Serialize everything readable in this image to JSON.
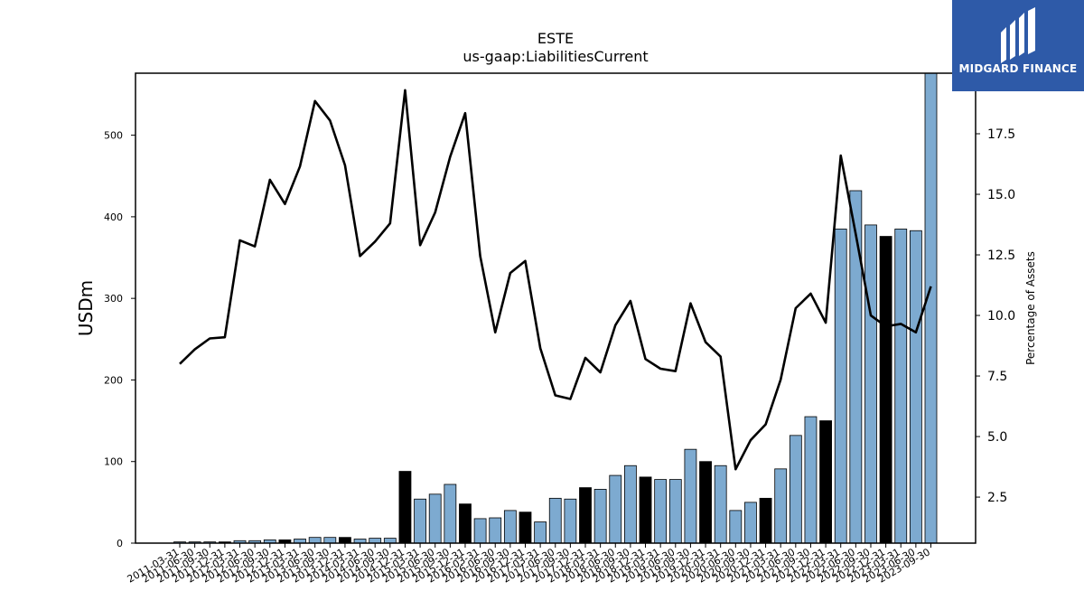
{
  "chart_data": {
    "type": "bar",
    "title": "ESTE",
    "subtitle": "us-gaap:LiabilitiesCurrent",
    "ylabel": "USDm",
    "y2label": "Percentage of Assets",
    "ylim": [
      0,
      576
    ],
    "y2lim": [
      0.6,
      20.0
    ],
    "yticks": [
      0,
      100,
      200,
      300,
      400,
      500
    ],
    "y2ticks": [
      "2.5",
      "5.0",
      "7.5",
      "10.0",
      "12.5",
      "15.0",
      "17.5"
    ],
    "x": [
      "2011-03-31",
      "2011-06-30",
      "2011-09-30",
      "2011-12-31",
      "2012-03-31",
      "2012-06-30",
      "2012-09-30",
      "2012-12-31",
      "2013-03-31",
      "2013-06-30",
      "2013-09-30",
      "2013-12-31",
      "2014-03-31",
      "2014-06-30",
      "2014-09-30",
      "2014-12-31",
      "2015-03-31",
      "2015-06-30",
      "2015-09-30",
      "2015-12-31",
      "2016-03-31",
      "2016-06-30",
      "2016-09-30",
      "2016-12-31",
      "2017-03-31",
      "2017-06-30",
      "2017-09-30",
      "2017-12-31",
      "2018-03-31",
      "2018-06-30",
      "2018-09-30",
      "2018-12-31",
      "2019-03-31",
      "2019-06-30",
      "2019-09-30",
      "2019-12-31",
      "2020-03-31",
      "2020-06-30",
      "2020-09-30",
      "2020-12-31",
      "2021-03-31",
      "2021-06-30",
      "2021-09-30",
      "2021-12-31",
      "2022-03-31",
      "2022-06-30",
      "2022-09-30",
      "2022-12-31",
      "2023-03-31",
      "2023-06-30",
      "2023-09-30"
    ],
    "series": [
      {
        "kind": "bar",
        "values": [
          1.5,
          1.5,
          1.5,
          1.5,
          3,
          3,
          4,
          4,
          5,
          7,
          7,
          7,
          5,
          6,
          6,
          88,
          54,
          60,
          72,
          48,
          30,
          31,
          40,
          38,
          26,
          55,
          54,
          68,
          66,
          83,
          95,
          81,
          78,
          78,
          115,
          100,
          95,
          40,
          50,
          55,
          91,
          132,
          155,
          150,
          385,
          432,
          390,
          376,
          385,
          383,
          576
        ],
        "annual": [
          false,
          false,
          false,
          true,
          false,
          false,
          false,
          true,
          false,
          false,
          false,
          true,
          false,
          false,
          false,
          true,
          false,
          false,
          false,
          true,
          false,
          false,
          false,
          true,
          false,
          false,
          false,
          true,
          false,
          false,
          false,
          true,
          false,
          false,
          false,
          true,
          false,
          false,
          false,
          true,
          false,
          false,
          false,
          true,
          false,
          false,
          false,
          true,
          false,
          false,
          false
        ]
      },
      {
        "kind": "line",
        "axis": "right",
        "values": [
          8.0,
          8.6,
          9.05,
          9.1,
          13.1,
          12.85,
          15.6,
          14.6,
          16.15,
          18.85,
          18.05,
          16.2,
          12.45,
          13.05,
          13.8,
          19.3,
          12.9,
          14.25,
          16.55,
          18.35,
          12.45,
          9.3,
          11.75,
          12.25,
          8.65,
          6.7,
          6.55,
          8.25,
          7.65,
          9.6,
          10.6,
          8.2,
          7.8,
          7.7,
          10.5,
          8.9,
          8.3,
          3.65,
          4.85,
          5.5,
          7.35,
          10.3,
          10.9,
          9.7,
          16.6,
          13.35,
          10.0,
          9.55,
          9.65,
          9.3,
          11.2
        ]
      }
    ],
    "colors": {
      "bar": "#7daad0",
      "bar_annual": "#000000",
      "line": "#000000"
    }
  },
  "logo": {
    "text": "MIDGARD FINANCE",
    "bg": "#2e5aa8"
  }
}
